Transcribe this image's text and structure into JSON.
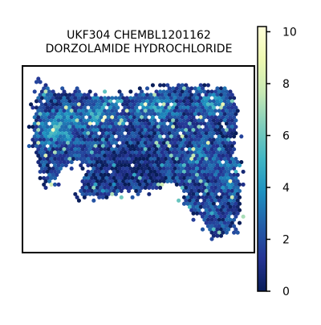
{
  "chart_data": {
    "type": "heatmap",
    "subtype": "hexbin spatial map",
    "title_lines": [
      "UKF304 CHEMBL1201162",
      "DORZOLAMIDE HYDROCHLORIDE"
    ],
    "xlabel": "",
    "ylabel": "",
    "grid": false,
    "colormap": "YlGnBu",
    "colorbar": {
      "range": [
        0,
        10.2
      ],
      "ticks": [
        0,
        2,
        4,
        6,
        8,
        10
      ],
      "tick_labels": [
        "0",
        "2",
        "4",
        "6",
        "8",
        "10"
      ]
    },
    "colors": {
      "low": "#081d58",
      "mid": "#1d91c0",
      "high": "#ffffd9",
      "frame": "#000000"
    }
  }
}
